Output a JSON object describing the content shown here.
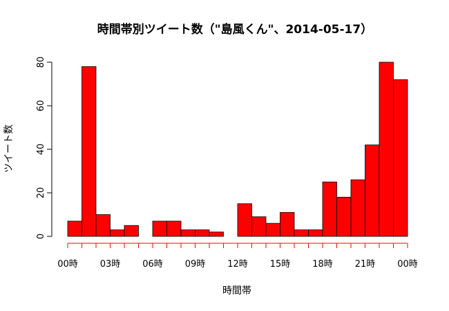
{
  "chart_data": {
    "type": "bar",
    "title": "時間帯別ツイート数（\"島風くん\"、2014-05-17）",
    "xlabel": "時間帯",
    "ylabel": "ツイート数",
    "ylim": [
      0,
      80
    ],
    "yticks": [
      0,
      20,
      40,
      60,
      80
    ],
    "hours": [
      0,
      1,
      2,
      3,
      4,
      5,
      6,
      7,
      8,
      9,
      10,
      11,
      12,
      13,
      14,
      15,
      16,
      17,
      18,
      19,
      20,
      21,
      22,
      23
    ],
    "values": [
      7,
      78,
      10,
      3,
      5,
      0,
      7,
      7,
      3,
      3,
      2,
      0,
      15,
      9,
      6,
      11,
      3,
      3,
      25,
      18,
      26,
      42,
      80,
      72
    ],
    "x_tick_positions": [
      0,
      3,
      6,
      9,
      12,
      15,
      18,
      21,
      24
    ],
    "x_tick_labels": [
      "00時",
      "03時",
      "06時",
      "09時",
      "12時",
      "15時",
      "18時",
      "21時",
      "00時"
    ],
    "bar_color": "#ff0000",
    "axis_color": "#ff0000",
    "grid": false
  }
}
